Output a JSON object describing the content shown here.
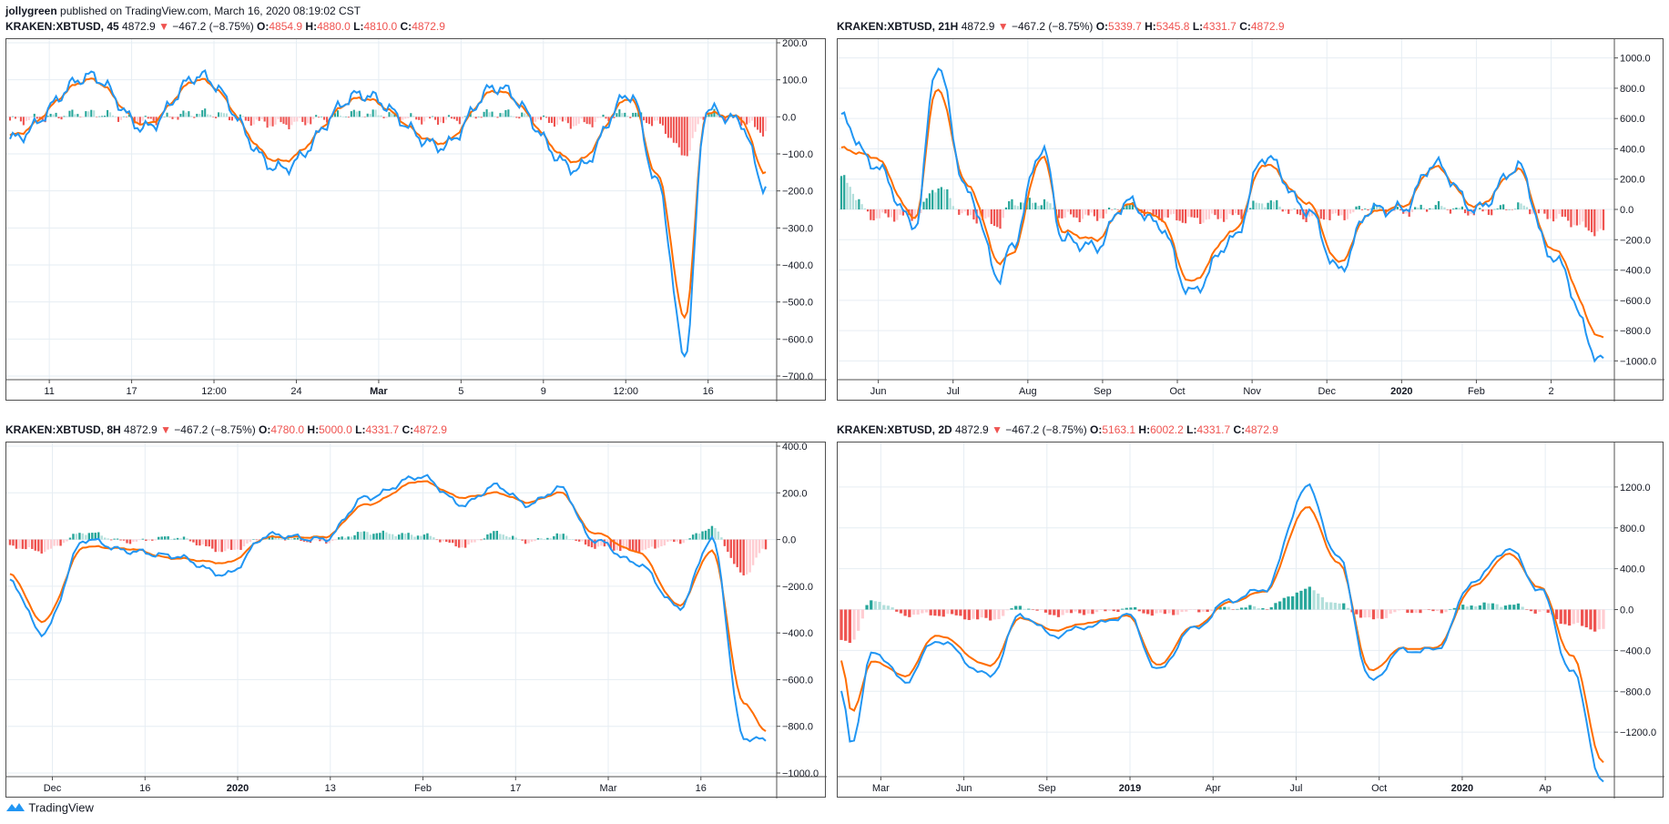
{
  "header": {
    "author": "jollygreen",
    "published_text": "published on TradingView.com, March 16, 2020 08:19:02 CST"
  },
  "footer": {
    "brand": "TradingView",
    "logo_icon": "tradingview-cloud-icon"
  },
  "colors": {
    "macd_line": "#2196f3",
    "signal_line": "#ff6d00",
    "hist_up_strong": "#26a69a",
    "hist_up_weak": "#b2dfdb",
    "hist_down_strong": "#ef5350",
    "hist_down_weak": "#ffcdd2",
    "grid": "#e6edf3",
    "down_arrow": "#ef5350"
  },
  "chart_data": [
    {
      "type": "line",
      "indicator": "MACD",
      "symbol": "KRAKEN:XBTUSD",
      "timeframe": "45",
      "legend": {
        "price": "4872.9",
        "change": "−467.2 (−8.75%)",
        "O": "4854.9",
        "H": "4880.0",
        "L": "4810.0",
        "C": "4872.9"
      },
      "x_ticks": [
        "11",
        "17",
        "12:00",
        "24",
        "Mar",
        "5",
        "9",
        "12:00",
        "16"
      ],
      "x_tick_bold": [
        false,
        false,
        false,
        false,
        true,
        false,
        false,
        false,
        false
      ],
      "y_ticks": [
        "200.0",
        "100.0",
        "0.0",
        "−100.0",
        "−200.0",
        "−300.0",
        "−400.0",
        "−500.0",
        "−600.0",
        "−700.0"
      ],
      "ylim": [
        -700,
        200
      ],
      "x_anchors": [
        0,
        60,
        100,
        140,
        200,
        260,
        320,
        360,
        420,
        460,
        480,
        500,
        516,
        540,
        560
      ],
      "macd_anchors": [
        -60,
        110,
        -30,
        110,
        -140,
        60,
        -80,
        80,
        -140,
        60,
        -180,
        -640,
        20,
        -10,
        -190
      ],
      "signal_anchors": [
        -50,
        100,
        -20,
        100,
        -120,
        50,
        -70,
        70,
        -120,
        50,
        -160,
        -540,
        10,
        0,
        -150
      ],
      "points": 280,
      "wiggle": 14
    },
    {
      "type": "line",
      "indicator": "MACD",
      "symbol": "KRAKEN:XBTUSD",
      "timeframe": "21H",
      "legend": {
        "price": "4872.9",
        "change": "−467.2 (−8.75%)",
        "O": "5339.7",
        "H": "5345.8",
        "L": "4331.7",
        "C": "4872.9"
      },
      "x_ticks": [
        "Jun",
        "Jul",
        "Aug",
        "Sep",
        "Oct",
        "Nov",
        "Dec",
        "2020",
        "Feb",
        "2"
      ],
      "x_tick_bold": [
        false,
        false,
        false,
        false,
        false,
        false,
        false,
        true,
        false,
        false
      ],
      "y_ticks": [
        "1000.0",
        "800.0",
        "600.0",
        "400.0",
        "200.0",
        "0.0",
        "−200.0",
        "−400.0",
        "−600.0",
        "−800.0",
        "−1000.0"
      ],
      "ylim": [
        -1100,
        1100
      ],
      "x_anchors": [
        0,
        30,
        70,
        90,
        120,
        150,
        160,
        190,
        210,
        240,
        270,
        300,
        330,
        370,
        400,
        440,
        470,
        500,
        530,
        560,
        600,
        640,
        670,
        720
      ],
      "macd_anchors": [
        600,
        300,
        -100,
        950,
        100,
        -450,
        -250,
        400,
        -200,
        -250,
        50,
        -100,
        -550,
        -200,
        350,
        0,
        -400,
        0,
        0,
        300,
        0,
        280,
        -300,
        -1000
      ],
      "signal_anchors": [
        400,
        350,
        -50,
        800,
        150,
        -350,
        -300,
        350,
        -150,
        -200,
        30,
        -50,
        -480,
        -150,
        300,
        50,
        -350,
        -20,
        20,
        280,
        20,
        260,
        -250,
        -850
      ],
      "points": 260,
      "wiggle": 35
    },
    {
      "type": "line",
      "indicator": "MACD",
      "symbol": "KRAKEN:XBTUSD",
      "timeframe": "8H",
      "legend": {
        "price": "4872.9",
        "change": "−467.2 (−8.75%)",
        "O": "4780.0",
        "H": "5000.0",
        "L": "4331.7",
        "C": "4872.9"
      },
      "x_ticks": [
        "Dec",
        "16",
        "2020",
        "13",
        "Feb",
        "17",
        "Mar",
        "16"
      ],
      "x_tick_bold": [
        false,
        false,
        true,
        false,
        false,
        false,
        false,
        false
      ],
      "y_ticks": [
        "400.0",
        "200.0",
        "0.0",
        "−200.0",
        "−400.0",
        "−600.0",
        "−800.0",
        "−1000.0"
      ],
      "ylim": [
        -1000,
        400
      ],
      "x_anchors": [
        0,
        30,
        70,
        110,
        150,
        200,
        240,
        290,
        330,
        380,
        420,
        450,
        480,
        510,
        540,
        580,
        620,
        650,
        680,
        700
      ],
      "macd_anchors": [
        -180,
        -400,
        0,
        -50,
        -70,
        -150,
        20,
        0,
        180,
        270,
        150,
        230,
        150,
        220,
        0,
        -100,
        -290,
        0,
        -850,
        -860
      ],
      "signal_anchors": [
        -150,
        -350,
        -30,
        -40,
        -80,
        -100,
        10,
        10,
        150,
        250,
        180,
        200,
        160,
        200,
        30,
        -50,
        -280,
        -50,
        -700,
        -820
      ],
      "points": 240,
      "wiggle": 10
    },
    {
      "type": "line",
      "indicator": "MACD",
      "symbol": "KRAKEN:XBTUSD",
      "timeframe": "2D",
      "legend": {
        "price": "4872.9",
        "change": "−467.2 (−8.75%)",
        "O": "5163.1",
        "H": "6002.2",
        "L": "4331.7",
        "C": "4872.9"
      },
      "x_ticks": [
        "Mar",
        "Jun",
        "Sep",
        "2019",
        "Apr",
        "Jul",
        "Oct",
        "2020",
        "Ap"
      ],
      "x_tick_bold": [
        false,
        false,
        false,
        true,
        false,
        false,
        false,
        true,
        false
      ],
      "y_ticks": [
        "1200.0",
        "800.0",
        "400.0",
        "0.0",
        "−400.0",
        "−800.0",
        "−1200.0"
      ],
      "ylim": [
        -1600,
        1600
      ],
      "x_anchors": [
        0,
        10,
        30,
        60,
        90,
        140,
        170,
        200,
        240,
        270,
        300,
        330,
        370,
        400,
        440,
        470,
        500,
        530,
        560,
        600,
        630,
        660,
        690,
        720
      ],
      "macd_anchors": [
        -800,
        -1300,
        -400,
        -700,
        -300,
        -650,
        -50,
        -250,
        -150,
        -50,
        -600,
        -200,
        100,
        200,
        1200,
        500,
        -700,
        -400,
        -400,
        300,
        600,
        200,
        -600,
        -1700
      ],
      "signal_anchors": [
        -500,
        -1000,
        -500,
        -650,
        -250,
        -550,
        -80,
        -200,
        -120,
        -60,
        -550,
        -180,
        80,
        180,
        1000,
        450,
        -600,
        -380,
        -380,
        250,
        550,
        220,
        -450,
        -1500
      ],
      "points": 180,
      "wiggle": 25
    }
  ]
}
